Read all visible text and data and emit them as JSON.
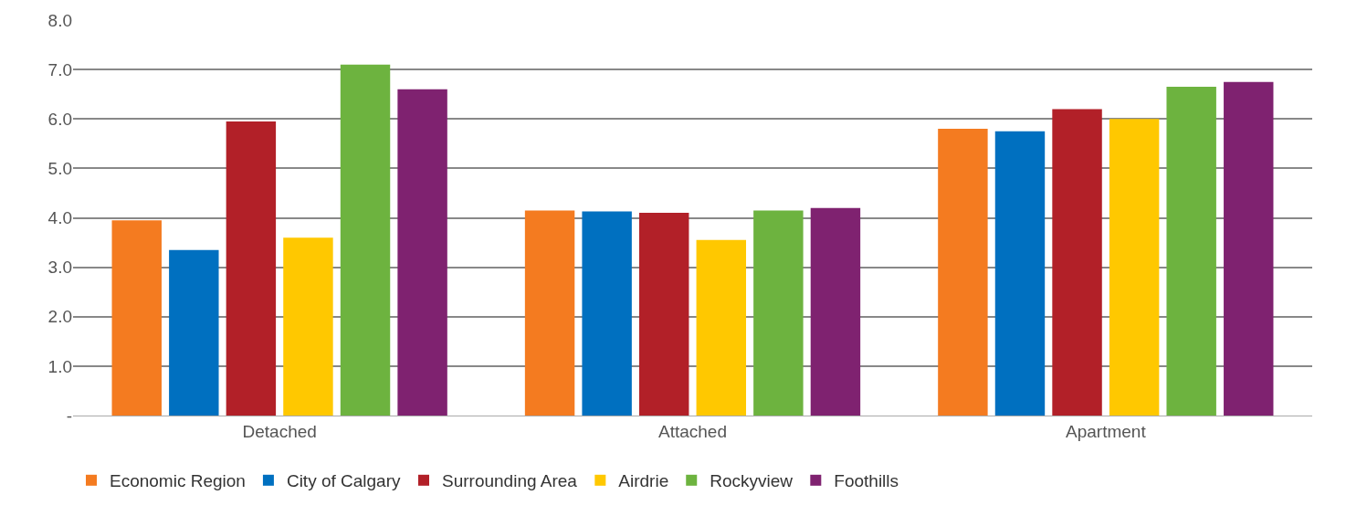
{
  "chart_data": {
    "type": "bar",
    "categories": [
      "Detached",
      "Attached",
      "Apartment"
    ],
    "series": [
      {
        "name": "Economic Region",
        "color": "#f47b20",
        "values": [
          3.95,
          4.15,
          5.8
        ]
      },
      {
        "name": "City of Calgary",
        "color": "#0070c0",
        "values": [
          3.35,
          4.13,
          5.75
        ]
      },
      {
        "name": "Surrounding Area",
        "color": "#b22028",
        "values": [
          5.95,
          4.1,
          6.2
        ]
      },
      {
        "name": "Airdrie",
        "color": "#ffc800",
        "values": [
          3.6,
          3.55,
          6.0
        ]
      },
      {
        "name": "Rockyview",
        "color": "#6db33f",
        "values": [
          7.1,
          4.15,
          6.65
        ]
      },
      {
        "name": "Foothills",
        "color": "#7f2270",
        "values": [
          6.6,
          4.2,
          6.75
        ]
      }
    ],
    "ylim": [
      0,
      8
    ],
    "yticks": [
      {
        "value": 0,
        "label": "-"
      },
      {
        "value": 1,
        "label": "1.0"
      },
      {
        "value": 2,
        "label": "2.0"
      },
      {
        "value": 3,
        "label": "3.0"
      },
      {
        "value": 4,
        "label": "4.0"
      },
      {
        "value": 5,
        "label": "5.0"
      },
      {
        "value": 6,
        "label": "6.0"
      },
      {
        "value": 7,
        "label": "7.0"
      },
      {
        "value": 8,
        "label": "8.0"
      }
    ],
    "grid": "y",
    "legend": "bottom left"
  }
}
